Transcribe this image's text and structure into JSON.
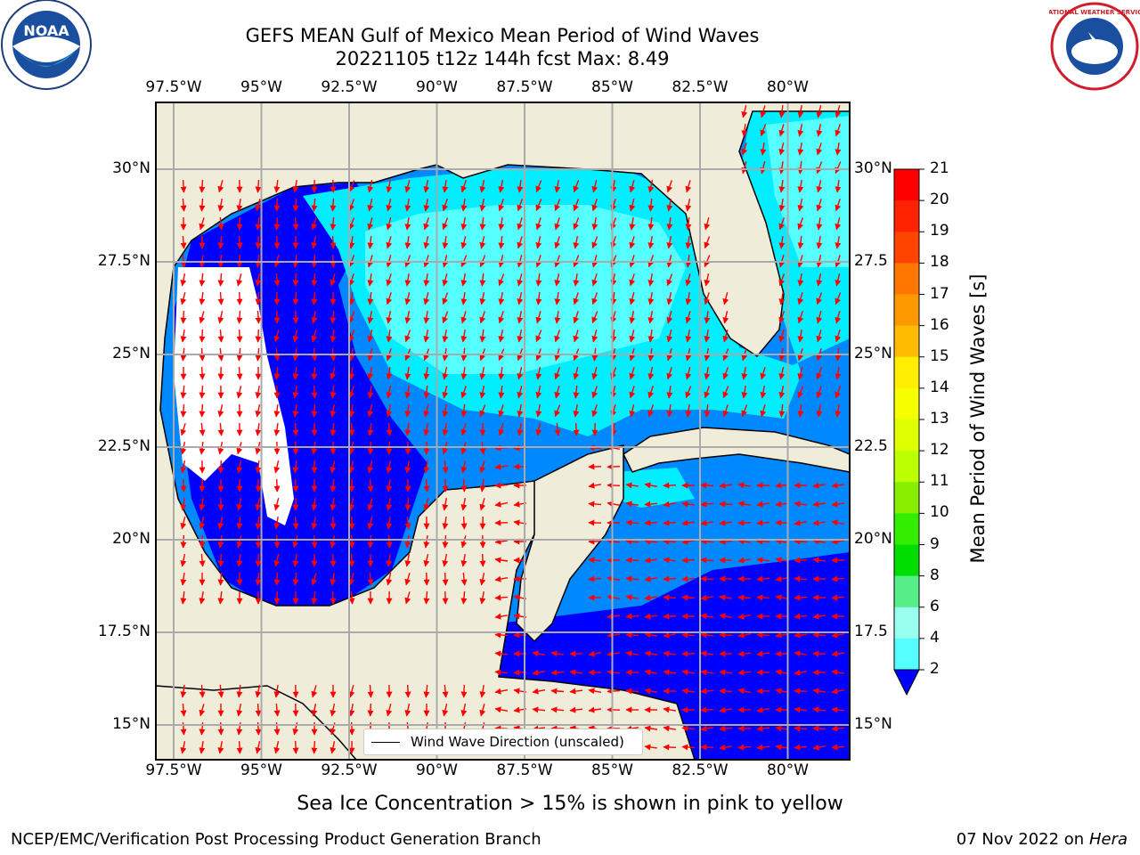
{
  "title_line1": "GEFS MEAN Gulf of Mexico Mean Period of Wind Waves",
  "title_line2": "20221105 t12z 144h fcst   Max: 8.49",
  "lon_ticks": [
    "97.5°W",
    "95°W",
    "92.5°W",
    "90°W",
    "87.5°W",
    "85°W",
    "82.5°W",
    "80°W"
  ],
  "lat_ticks_left": [
    "30°N",
    "27.5°N",
    "25°N",
    "22.5°N",
    "20°N",
    "17.5°N",
    "15°N"
  ],
  "lat_ticks_right": [
    "30°N",
    "27.5",
    "25°N",
    "22.5",
    "20°N",
    "17.5",
    "15°N"
  ],
  "legend_label": "Wind Wave Direction (unscaled)",
  "colorbar": {
    "title": "Mean Period of Wind Waves [s]",
    "labels": [
      "21",
      "20",
      "19",
      "18",
      "17",
      "16",
      "15",
      "14",
      "13",
      "12",
      "11",
      "10",
      "9",
      "8",
      "6",
      "4",
      "2"
    ],
    "colors": [
      "#ff0000",
      "#ff2200",
      "#ff4400",
      "#ff7700",
      "#ff9900",
      "#ffbb00",
      "#ffee00",
      "#f5ff00",
      "#ddff00",
      "#bbff00",
      "#88ee00",
      "#33ee00",
      "#00dd00",
      "#55ee88",
      "#99ffee",
      "#55ffff",
      "#00eeff",
      "#00bbff",
      "#0088ff"
    ],
    "extend_color": "#0000ff"
  },
  "note": "Sea Ice Concentration > 15% is shown in pink to yellow",
  "footer_left": "NCEP/EMC/Verification Post Processing Product Generation Branch",
  "footer_date": "07 Nov 2022 on",
  "footer_host": "Hera",
  "colors": {
    "land": "#efedd9",
    "low_period": "#0000ff",
    "mid_period": "#0088ff",
    "high_period": "#00eeff",
    "peak_period": "#55ffff",
    "no_data": "#ffffff",
    "arrows": "#ff0000"
  },
  "logos": {
    "left": "NOAA",
    "right": "NATIONAL WEATHER SERVICE"
  }
}
